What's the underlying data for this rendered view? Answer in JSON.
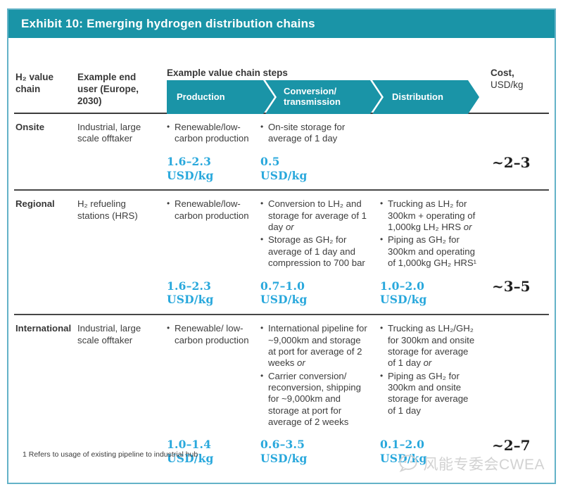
{
  "title": "Exhibit 10: Emerging hydrogen distribution chains",
  "bullet_char": "•",
  "colors": {
    "teal": "#1a94a7",
    "cyan": "#29a8dc",
    "frame": "#63b2c7",
    "text": "#3d3d3d",
    "watermark": "#d2d2d2"
  },
  "header": {
    "col_chain": "H₂ value chain",
    "col_end_user": "Example end user (Europe, 2030)",
    "steps_title": "Example value chain steps",
    "arrows": [
      "Production",
      "Conversion/ transmission",
      "Distribution"
    ],
    "cost_label": "Cost,",
    "cost_unit": "USD/kg"
  },
  "rows": [
    {
      "chain": "Onsite",
      "end_user": "Industrial, large scale offtaker",
      "production": {
        "bullets": [
          "Renewable/low-carbon production"
        ],
        "cost": "1.6–2.3",
        "unit": "USD/kg"
      },
      "conversion": {
        "bullets": [
          "On-site storage for average of 1 day"
        ],
        "cost": "0.5",
        "unit": "USD/kg"
      },
      "distribution": {
        "bullets": [],
        "cost": "",
        "unit": ""
      },
      "total": "~2–3"
    },
    {
      "chain": "Regional",
      "end_user": "H₂ refueling stations (HRS)",
      "production": {
        "bullets": [
          "Renewable/low-carbon production"
        ],
        "cost": "1.6–2.3",
        "unit": "USD/kg"
      },
      "conversion": {
        "bullets": [
          "Conversion to LH₂ and storage for average of 1 day or",
          "Storage as GH₂ for average of 1 day and compression to 700 bar"
        ],
        "cost": "0.7–1.0",
        "unit": "USD/kg"
      },
      "distribution": {
        "bullets": [
          "Trucking as LH₂ for 300km + operating of 1,000kg LH₂ HRS or",
          "Piping as GH₂ for 300km and operating of 1,000kg GH₂ HRS¹"
        ],
        "cost": "1.0–2.0",
        "unit": "USD/kg"
      },
      "total": "~3–5"
    },
    {
      "chain": "International",
      "end_user": "Industrial, large scale offtaker",
      "production": {
        "bullets": [
          "Renewable/ low-carbon production"
        ],
        "cost": "1.0–1.4",
        "unit": "USD/kg"
      },
      "conversion": {
        "bullets": [
          "International pipeline for ~9,000km and storage at port for average of 2 weeks or",
          "Carrier conversion/ reconversion, shipping for ~9,000km and storage at port for average of 2 weeks"
        ],
        "cost": "0.6–3.5",
        "unit": "USD/kg"
      },
      "distribution": {
        "bullets": [
          "Trucking as LH₂/GH₂ for 300km and onsite storage for average of 1 day or",
          "Piping as GH₂ for 300km and onsite storage for average of 1 day"
        ],
        "cost": "0.1–2.0",
        "unit": "USD/kg"
      },
      "total": "~2–7"
    }
  ],
  "footnote": "1 Refers to usage of existing pipeline to industrial hub",
  "watermark": {
    "text": "风能专委会CWEA",
    "icon": "wechat-chat-bubble-icon"
  }
}
